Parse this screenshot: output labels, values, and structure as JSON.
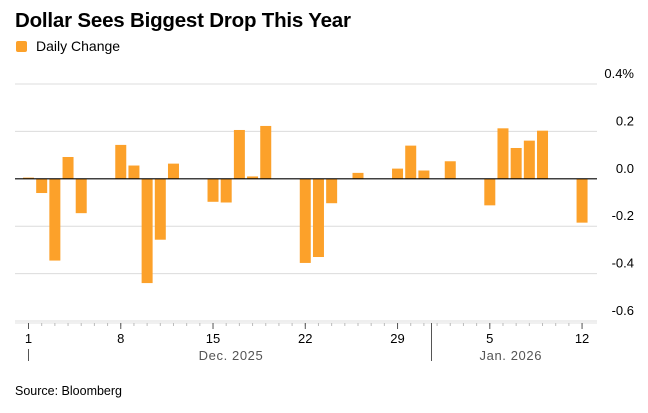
{
  "header": {
    "title": "Dollar Sees Biggest Drop This Year"
  },
  "legend": {
    "label": "Daily Change",
    "color": "#FCA12A"
  },
  "footer": {
    "source": "Source: Bloomberg"
  },
  "chart_data": {
    "type": "bar",
    "title": "Dollar Sees Biggest Drop This Year",
    "xlabel": "",
    "ylabel": "",
    "ylim": [
      -0.6,
      0.4
    ],
    "yticks": [
      0.4,
      0.2,
      0.0,
      -0.2,
      -0.4,
      -0.6
    ],
    "ytick_labels": [
      "0.4%",
      "0.2",
      "0.0",
      "-0.2",
      "-0.4",
      "-0.6"
    ],
    "grid": true,
    "legend_position": "top-left",
    "series": [
      {
        "name": "Daily Change",
        "color": "#FCA12A",
        "points": [
          {
            "date": "2025-12-01",
            "value": 0.005
          },
          {
            "date": "2025-12-02",
            "value": -0.06
          },
          {
            "date": "2025-12-03",
            "value": -0.345
          },
          {
            "date": "2025-12-04",
            "value": 0.092
          },
          {
            "date": "2025-12-05",
            "value": -0.145
          },
          {
            "date": "2025-12-08",
            "value": 0.143
          },
          {
            "date": "2025-12-09",
            "value": 0.056
          },
          {
            "date": "2025-12-10",
            "value": -0.44
          },
          {
            "date": "2025-12-11",
            "value": -0.257
          },
          {
            "date": "2025-12-12",
            "value": 0.064
          },
          {
            "date": "2025-12-15",
            "value": -0.097
          },
          {
            "date": "2025-12-16",
            "value": -0.1
          },
          {
            "date": "2025-12-17",
            "value": 0.206
          },
          {
            "date": "2025-12-18",
            "value": 0.01
          },
          {
            "date": "2025-12-19",
            "value": 0.223
          },
          {
            "date": "2025-12-22",
            "value": -0.355
          },
          {
            "date": "2025-12-23",
            "value": -0.33
          },
          {
            "date": "2025-12-24",
            "value": -0.103
          },
          {
            "date": "2025-12-26",
            "value": 0.025
          },
          {
            "date": "2025-12-29",
            "value": 0.043
          },
          {
            "date": "2025-12-30",
            "value": 0.14
          },
          {
            "date": "2025-12-31",
            "value": 0.035
          },
          {
            "date": "2026-01-02",
            "value": 0.074
          },
          {
            "date": "2026-01-05",
            "value": -0.112
          },
          {
            "date": "2026-01-06",
            "value": 0.213
          },
          {
            "date": "2026-01-07",
            "value": 0.13
          },
          {
            "date": "2026-01-08",
            "value": 0.161
          },
          {
            "date": "2026-01-09",
            "value": 0.203
          },
          {
            "date": "2026-01-12",
            "value": -0.185
          }
        ]
      }
    ],
    "x_range": [
      "2025-12-01",
      "2026-01-12"
    ],
    "xticks": [
      {
        "date": "2025-12-01",
        "label": "1"
      },
      {
        "date": "2025-12-08",
        "label": "8"
      },
      {
        "date": "2025-12-15",
        "label": "15"
      },
      {
        "date": "2025-12-22",
        "label": "22"
      },
      {
        "date": "2025-12-29",
        "label": "29"
      },
      {
        "date": "2026-01-05",
        "label": "5"
      },
      {
        "date": "2026-01-12",
        "label": "12"
      }
    ],
    "months": [
      {
        "start": "2025-12-01",
        "label": "Dec. 2025"
      },
      {
        "start": "2026-01-01",
        "label": "Jan. 2026"
      }
    ]
  }
}
